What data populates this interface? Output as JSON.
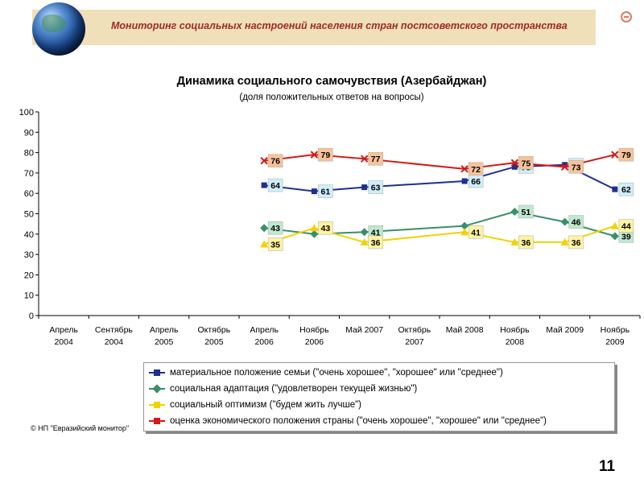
{
  "header": {
    "title": "Мониторинг социальных настроений населения стран постсоветского пространства",
    "accent_color": "#a0282b",
    "band_color": "#efe0b9",
    "icon": "minus-circle-icon"
  },
  "chart_data": {
    "type": "line",
    "title": "Динамика социального самочувствия (Азербайджан)",
    "subtitle": "(доля положительных ответов на вопросы)",
    "ylim": [
      0,
      100
    ],
    "yticks": [
      0,
      10,
      20,
      30,
      40,
      50,
      60,
      70,
      80,
      90,
      100
    ],
    "categories": [
      [
        "Апрель",
        "2004"
      ],
      [
        "Сентябрь",
        "2004"
      ],
      [
        "Апрель",
        "2005"
      ],
      [
        "Октябрь",
        "2005"
      ],
      [
        "Апрель",
        "2006"
      ],
      [
        "Ноябрь",
        "2006"
      ],
      [
        "Май 2007",
        ""
      ],
      [
        "Октябрь",
        "2007"
      ],
      [
        "Май 2008",
        ""
      ],
      [
        "Ноябрь",
        "2008"
      ],
      [
        "Май 2009",
        ""
      ],
      [
        "Ноябрь",
        "2009"
      ]
    ],
    "grid": false,
    "legend": "bottom",
    "series": [
      {
        "name": "материальное положение семьи (\"очень хорошее\", \"хорошее\" или \"среднее\")",
        "color": "#1f2f8f",
        "marker": "square",
        "label_bg": "#cfeefa",
        "values": [
          null,
          null,
          null,
          null,
          64,
          61,
          63,
          null,
          66,
          73,
          74,
          62
        ]
      },
      {
        "name": "социальная адаптация (\"удовлетворен текущей жизнью\")",
        "color": "#3a8f6a",
        "marker": "diamond",
        "label_bg": "#bfe8cf",
        "values": [
          null,
          null,
          null,
          null,
          43,
          40,
          41,
          null,
          44,
          51,
          46,
          39
        ]
      },
      {
        "name": "социальный оптимизм (\"будем жить лучше\")",
        "color": "#f2d200",
        "marker": "triangle",
        "label_bg": "#fff3a0",
        "values": [
          null,
          null,
          null,
          null,
          35,
          43,
          36,
          null,
          41,
          36,
          36,
          44
        ]
      },
      {
        "name": "оценка экономического положения страны (\"очень хорошее\", \"хорошее\" или \"среднее\")",
        "color": "#d11a1a",
        "marker": "x",
        "label_bg": "#f6c39a",
        "values": [
          null,
          null,
          null,
          null,
          76,
          79,
          77,
          null,
          72,
          75,
          73,
          79
        ]
      }
    ],
    "data_labels": [
      {
        "series": 0,
        "i": 4,
        "text": "64"
      },
      {
        "series": 0,
        "i": 5,
        "text": "61"
      },
      {
        "series": 0,
        "i": 6,
        "text": "63"
      },
      {
        "series": 0,
        "i": 8,
        "text": "66"
      },
      {
        "series": 0,
        "i": 9,
        "text": "73"
      },
      {
        "series": 0,
        "i": 10,
        "text": "74"
      },
      {
        "series": 0,
        "i": 11,
        "text": "62"
      },
      {
        "series": 1,
        "i": 4,
        "text": "43"
      },
      {
        "series": 1,
        "i": 6,
        "text": "41"
      },
      {
        "series": 1,
        "i": 9,
        "text": "51"
      },
      {
        "series": 1,
        "i": 10,
        "text": "46"
      },
      {
        "series": 1,
        "i": 11,
        "text": "39"
      },
      {
        "series": 2,
        "i": 4,
        "text": "35"
      },
      {
        "series": 2,
        "i": 5,
        "text": "43"
      },
      {
        "series": 2,
        "i": 6,
        "text": "36"
      },
      {
        "series": 2,
        "i": 8,
        "text": "41"
      },
      {
        "series": 2,
        "i": 9,
        "text": "36"
      },
      {
        "series": 2,
        "i": 10,
        "text": "36"
      },
      {
        "series": 2,
        "i": 11,
        "text": "44"
      },
      {
        "series": 3,
        "i": 4,
        "text": "76"
      },
      {
        "series": 3,
        "i": 5,
        "text": "79"
      },
      {
        "series": 3,
        "i": 6,
        "text": "77"
      },
      {
        "series": 3,
        "i": 8,
        "text": "72"
      },
      {
        "series": 3,
        "i": 9,
        "text": "75"
      },
      {
        "series": 3,
        "i": 10,
        "text": "73"
      },
      {
        "series": 3,
        "i": 11,
        "text": "79"
      }
    ]
  },
  "copyright": "© НП \"Евразийский монитор\"",
  "page_number": "11"
}
